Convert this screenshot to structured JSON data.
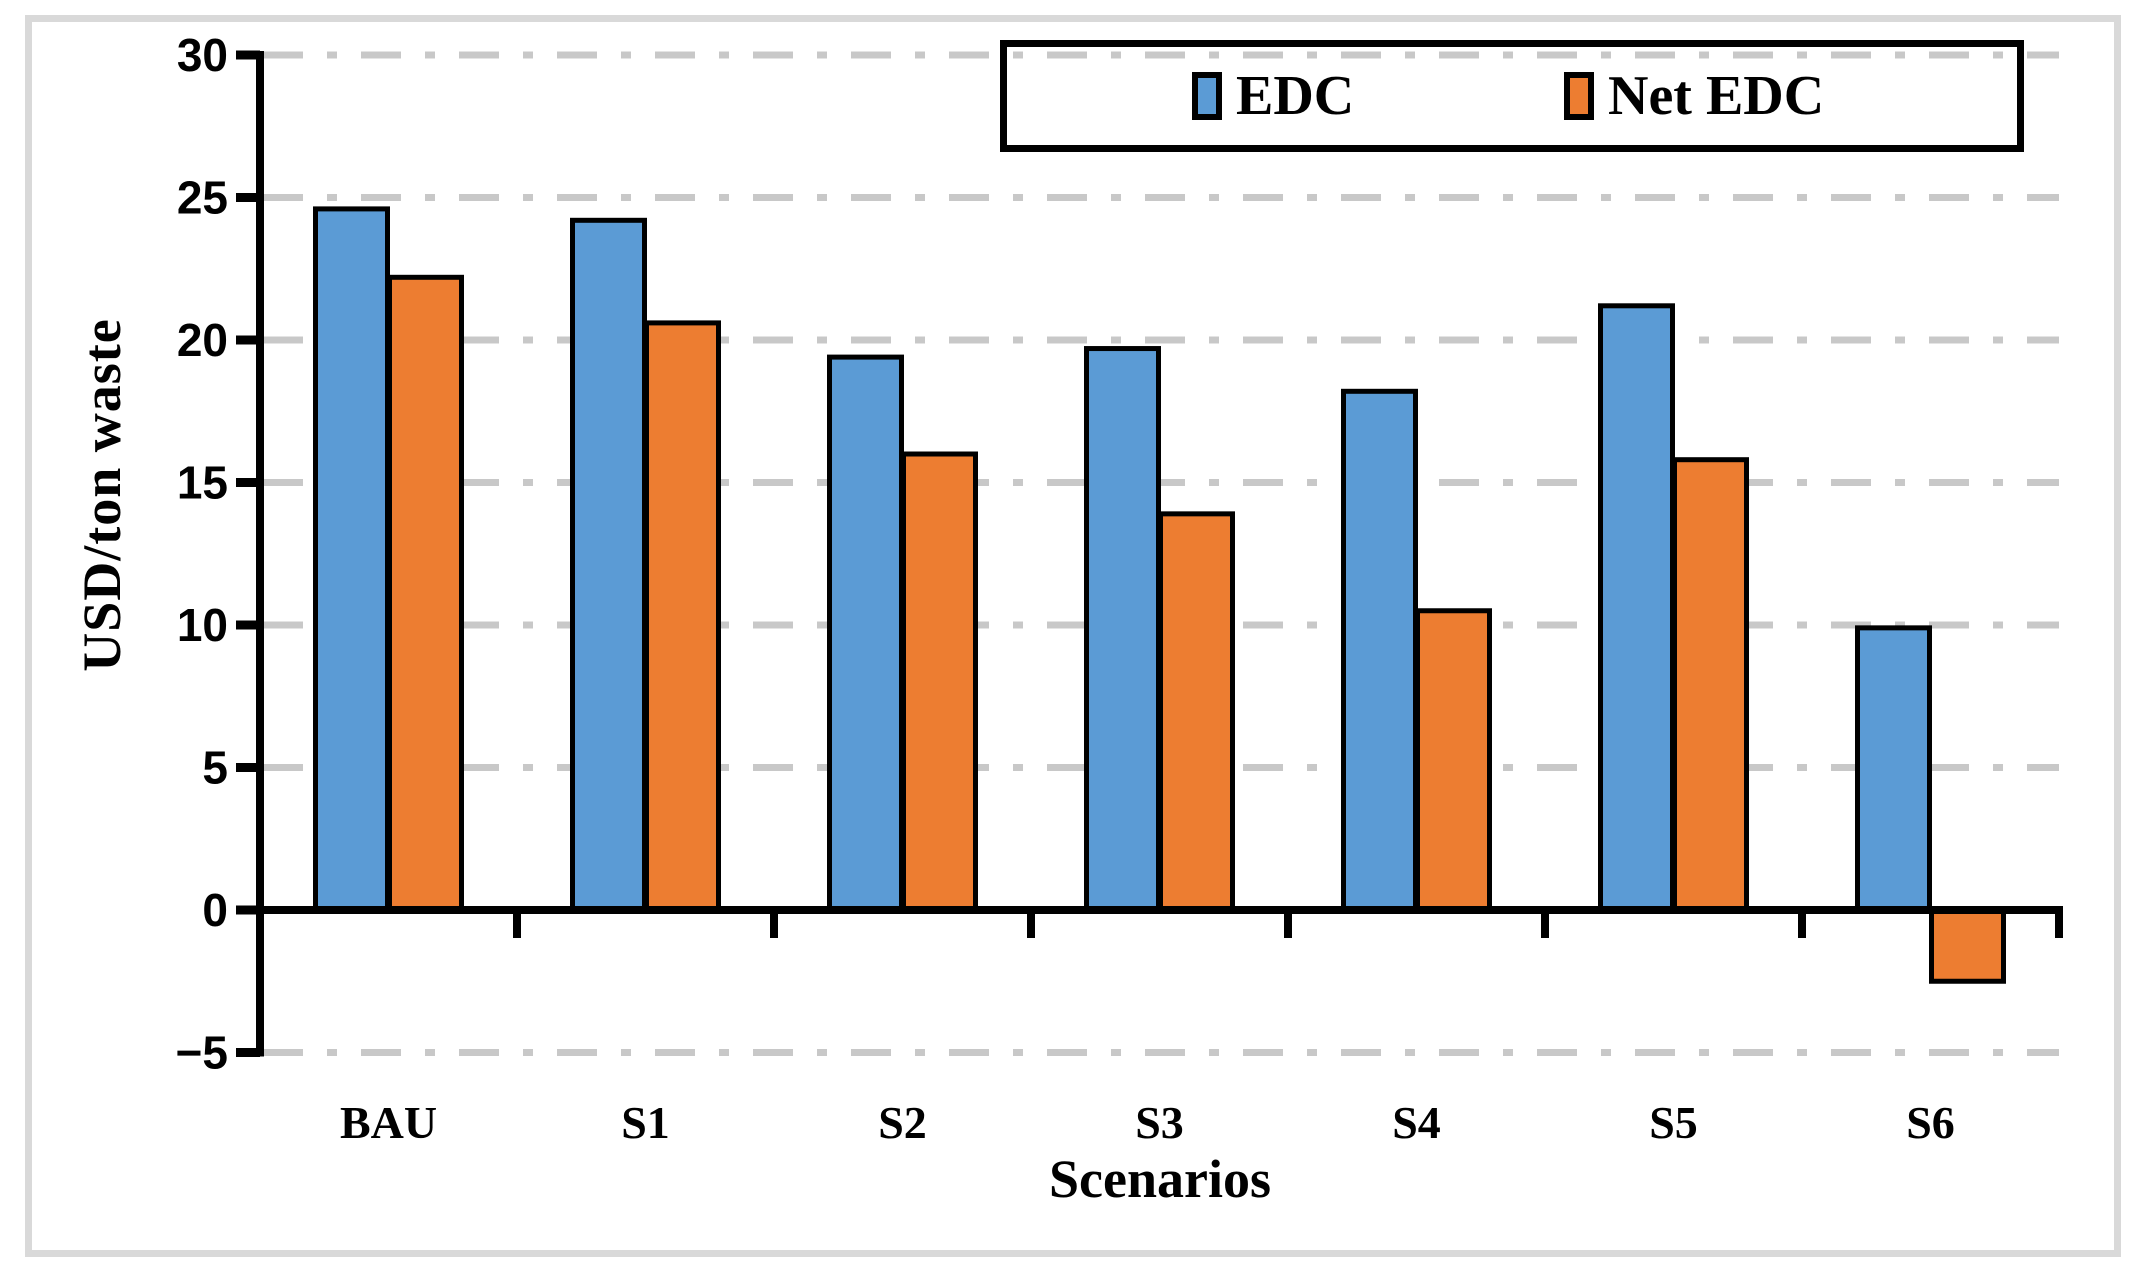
{
  "figure": {
    "background": "#FFFFFF",
    "border_color": "#D9D9D9"
  },
  "chart_data": {
    "type": "bar",
    "title": "",
    "categories": [
      "BAU",
      "S1",
      "S2",
      "S3",
      "S4",
      "S5",
      "S6"
    ],
    "series": [
      {
        "name": "EDC",
        "color": "#5B9BD5",
        "values": [
          24.6,
          24.2,
          19.4,
          19.7,
          18.2,
          21.2,
          9.9
        ]
      },
      {
        "name": "Net EDC",
        "color": "#ED7D31",
        "values": [
          22.2,
          20.6,
          16.0,
          13.9,
          10.5,
          15.8,
          -2.5
        ]
      }
    ],
    "xlabel": "Scenarios",
    "ylabel": "USD/ton waste",
    "ylim": [
      -5,
      30
    ],
    "yticks": [
      30,
      25,
      20,
      15,
      10,
      5,
      0,
      -5
    ],
    "ytick_labels": [
      "30",
      "25",
      "20",
      "15",
      "10",
      "5",
      "0",
      "−5"
    ],
    "grid": "horizontal dash-dot",
    "gridline_color": "#C8C8C8",
    "axis_color": "#000000",
    "bar_outline_color": "#000000",
    "legend_position": "top-right inside, boxed"
  }
}
